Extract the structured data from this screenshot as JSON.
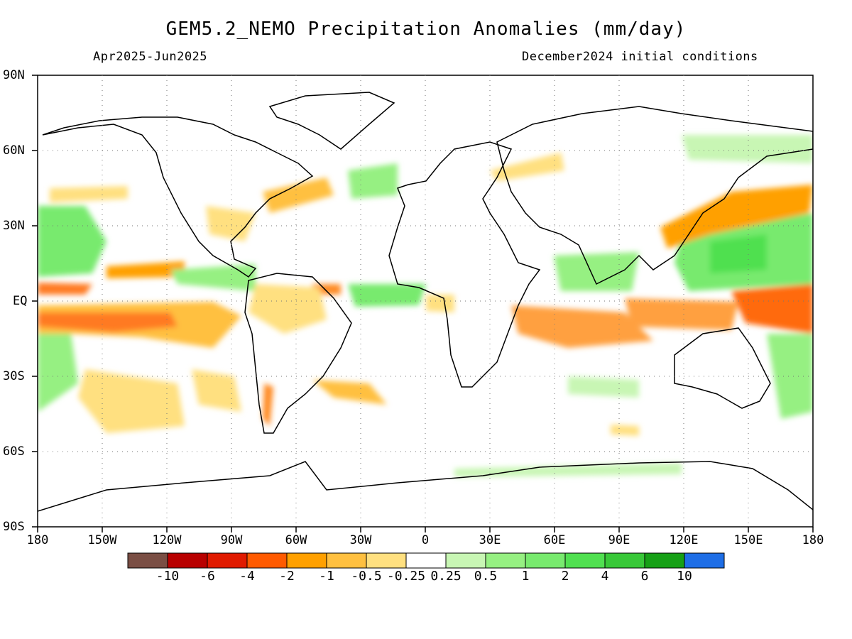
{
  "title": "GEM5.2_NEMO Precipitation Anomalies (mm/day)",
  "period": "Apr2025-Jun2025",
  "init": "December2024 initial conditions",
  "lat_labels": [
    "90N",
    "60N",
    "30N",
    "EQ",
    "30S",
    "60S",
    "90S"
  ],
  "lon_labels": [
    "180",
    "150W",
    "120W",
    "90W",
    "60W",
    "30W",
    "0",
    "30E",
    "60E",
    "90E",
    "120E",
    "150E",
    "180"
  ],
  "colorbar": {
    "colors": [
      "#7a4e44",
      "#b80000",
      "#e01a00",
      "#ff5a00",
      "#ffa000",
      "#ffc040",
      "#ffe080",
      "#ffffff",
      "#c8f6b4",
      "#96f082",
      "#78ea6e",
      "#50e050",
      "#38c838",
      "#16a016",
      "#1e6ee6"
    ],
    "labels": [
      "-10",
      "-6",
      "-4",
      "-2",
      "-1",
      "-0.5",
      "-0.25",
      "0.25",
      "0.5",
      "1",
      "2",
      "4",
      "6",
      "10"
    ]
  },
  "map": {
    "lon_range": [
      -180,
      180
    ],
    "lat_range": [
      -90,
      90
    ],
    "grid": true
  }
}
